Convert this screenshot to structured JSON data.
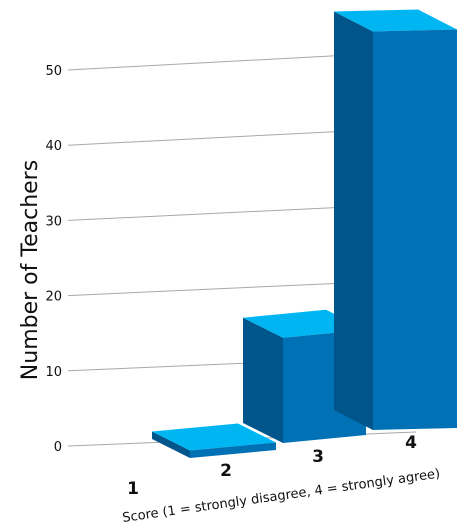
{
  "chart_data": {
    "type": "bar",
    "categories": [
      "1",
      "2",
      "3",
      "4"
    ],
    "values": [
      0,
      1,
      14,
      53
    ],
    "xlabel": "Score (1 = strongly disagree, 4 = strongly agree)",
    "ylabel": "Number of Teachers",
    "ylim": [
      0,
      55
    ],
    "yticks": [
      "0",
      "10",
      "20",
      "30",
      "40",
      "50"
    ],
    "grid": true,
    "three_d": true,
    "colors": {
      "front": "#0171b6",
      "side": "#00568b",
      "top": "#00b6f2"
    }
  }
}
